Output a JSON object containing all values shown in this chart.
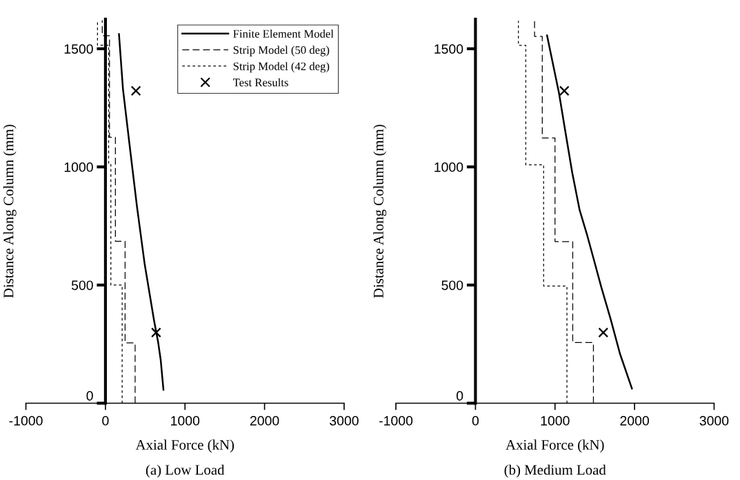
{
  "chart_data": [
    {
      "type": "line",
      "xlabel": "Axial Force (kN)",
      "ylabel": "Distance Along Column (mm)",
      "annotations": [
        "(a) Low Load"
      ],
      "xlim": [
        -1000,
        3000
      ],
      "xticks": [
        -1000,
        0,
        1000,
        2000,
        3000
      ],
      "ylim": [
        0,
        1625
      ],
      "yticks": [
        0,
        500,
        1000,
        1500
      ],
      "grid": false,
      "legend": "top right",
      "series": [
        {
          "name": "Finite Element Model",
          "color": "#000000",
          "line_style": "solid",
          "x": [
            729,
            695,
            661,
            610,
            492,
            397,
            312,
            220,
            170
          ],
          "values": [
            57,
            182,
            261,
            352,
            591,
            830,
            1068,
            1330,
            1562
          ]
        },
        {
          "name": "Strip Model (50 deg)",
          "color": "#000000",
          "line_style": "dashed",
          "x": [
            373,
            373,
            247,
            247,
            125,
            125,
            51,
            51,
            -40,
            -40
          ],
          "values": [
            0,
            255,
            255,
            685,
            685,
            1125,
            1125,
            1555,
            1555,
            1620
          ]
        },
        {
          "name": "Strip Model (42 deg)",
          "color": "#000000",
          "line_style": "dotted",
          "x": [
            210,
            210,
            68,
            68,
            40,
            40,
            -100,
            -100
          ],
          "values": [
            0,
            500,
            500,
            1010,
            1010,
            1515,
            1515,
            1620
          ]
        },
        {
          "name": "Test Results",
          "type": "scatter",
          "color": "#000000",
          "marker": "cross",
          "x": [
            383,
            637
          ],
          "values": [
            1322,
            299
          ]
        }
      ]
    },
    {
      "type": "line",
      "xlabel": "Axial Force (kN)",
      "ylabel": "Distance Along Column (mm)",
      "annotations": [
        "(b) Medium Load"
      ],
      "xlim": [
        -1000,
        3000
      ],
      "xticks": [
        -1000,
        0,
        1000,
        2000,
        3000
      ],
      "ylim": [
        0,
        1625
      ],
      "yticks": [
        0,
        500,
        1000,
        1500
      ],
      "grid": false,
      "series": [
        {
          "color": "#000000",
          "line_style": "solid",
          "x": [
            1967,
            1817,
            1700,
            1583,
            1483,
            1400,
            1310,
            1217,
            1133,
            1050,
            900
          ],
          "values": [
            62,
            209,
            355,
            490,
            614,
            716,
            817,
            975,
            1144,
            1313,
            1556
          ]
        },
        {
          "color": "#000000",
          "line_style": "dashed",
          "x": [
            1483,
            1483,
            1223,
            1223,
            1000,
            1000,
            840,
            840,
            743,
            743
          ],
          "values": [
            0,
            257,
            257,
            684,
            684,
            1122,
            1122,
            1552,
            1552,
            1618
          ]
        },
        {
          "color": "#000000",
          "line_style": "dotted",
          "x": [
            1150,
            1150,
            857,
            857,
            633,
            633,
            540,
            540
          ],
          "values": [
            0,
            496,
            496,
            1009,
            1009,
            1514,
            1514,
            1618
          ]
        },
        {
          "type": "scatter",
          "color": "#000000",
          "marker": "cross",
          "x": [
            1117,
            1607
          ],
          "values": [
            1322,
            299
          ]
        }
      ]
    }
  ]
}
